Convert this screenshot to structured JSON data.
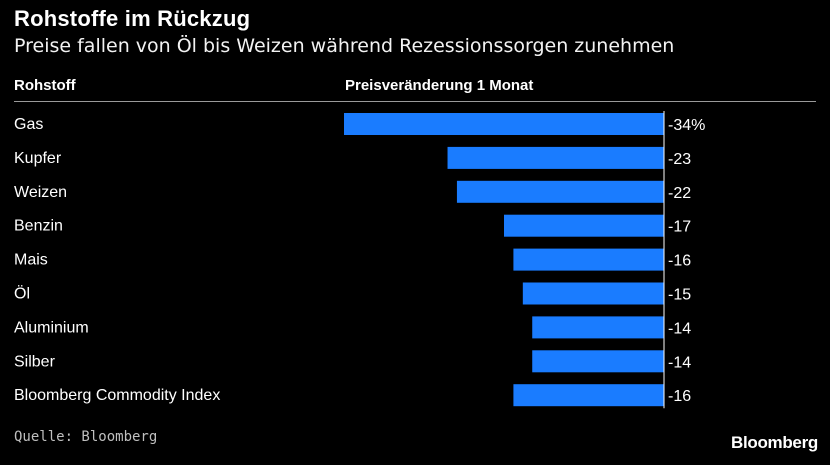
{
  "title": "Rohstoffe im Rückzug",
  "subtitle": "Preise fallen von Öl bis Weizen während Rezessionssorgen zunehmen",
  "columns": {
    "left": "Rohstoff",
    "right": "Preisveränderung 1 Monat"
  },
  "footer": {
    "source": "Quelle: Bloomberg",
    "brand": "Bloomberg"
  },
  "colors": {
    "bar": "#1a7cff",
    "background": "#000000",
    "text": "#ffffff",
    "axis": "#ffffff"
  },
  "chart_data": {
    "type": "bar",
    "orientation": "horizontal",
    "categories": [
      "Gas",
      "Kupfer",
      "Weizen",
      "Benzin",
      "Mais",
      "Öl",
      "Aluminium",
      "Silber",
      "Bloomberg Commodity Index"
    ],
    "values": [
      -34,
      -23,
      -22,
      -17,
      -16,
      -15,
      -14,
      -14,
      -16
    ],
    "value_labels": [
      "-34%",
      "-23",
      "-22",
      "-17",
      "-16",
      "-15",
      "-14",
      "-14",
      "-16"
    ],
    "xlim": [
      -34,
      0
    ],
    "grid": false,
    "legend": "none"
  }
}
